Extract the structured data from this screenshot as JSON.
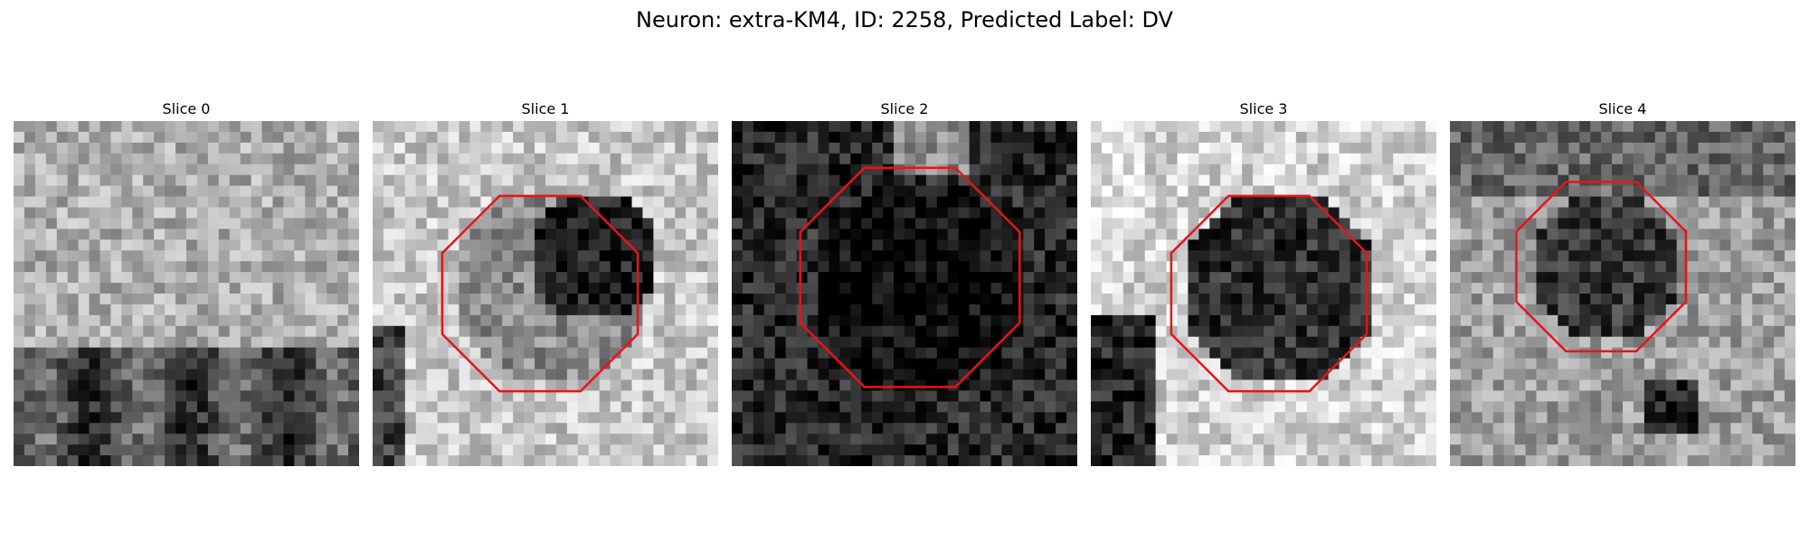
{
  "figure": {
    "title": "Neuron: extra-KM4, ID: 2258, Predicted Label: DV"
  },
  "panels": [
    {
      "title": "Slice 0",
      "has_roi": false,
      "roi_color": "#e8131a",
      "tone": "mid-light",
      "seed": 11
    },
    {
      "title": "Slice 1",
      "has_roi": true,
      "roi_color": "#e8131a",
      "tone": "light-dark-crescent",
      "seed": 23
    },
    {
      "title": "Slice 2",
      "has_roi": true,
      "roi_color": "#e8131a",
      "tone": "dark",
      "seed": 37
    },
    {
      "title": "Slice 3",
      "has_roi": true,
      "roi_color": "#e8131a",
      "tone": "light-dark-center",
      "seed": 51
    },
    {
      "title": "Slice 4",
      "has_roi": true,
      "roi_color": "#e8131a",
      "tone": "mid-dark-center",
      "seed": 67
    }
  ]
}
